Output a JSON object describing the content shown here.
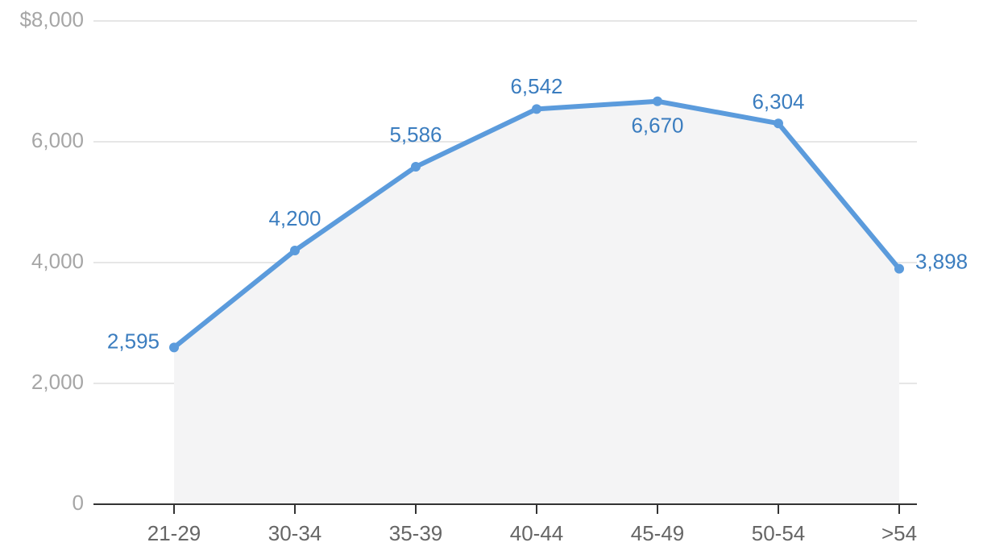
{
  "chart_data": {
    "type": "line",
    "categories": [
      "21-29",
      "30-34",
      "35-39",
      "40-44",
      "45-49",
      "50-54",
      ">54"
    ],
    "values": [
      2595,
      4200,
      5586,
      6542,
      6670,
      6304,
      3898
    ],
    "value_labels": [
      "2,595",
      "4,200",
      "5,586",
      "6,542",
      "6,670",
      "6,304",
      "3,898"
    ],
    "color": "#5b9bdc",
    "ylim": [
      0,
      8000
    ],
    "yticks": [
      0,
      {
        "value": 2000,
        "label": "2,000"
      },
      {
        "value": 4000,
        "label": "4,000"
      },
      {
        "value": 6000,
        "label": "6,000"
      },
      {
        "value": 8000,
        "label": "$8,000"
      }
    ],
    "grid": true
  }
}
